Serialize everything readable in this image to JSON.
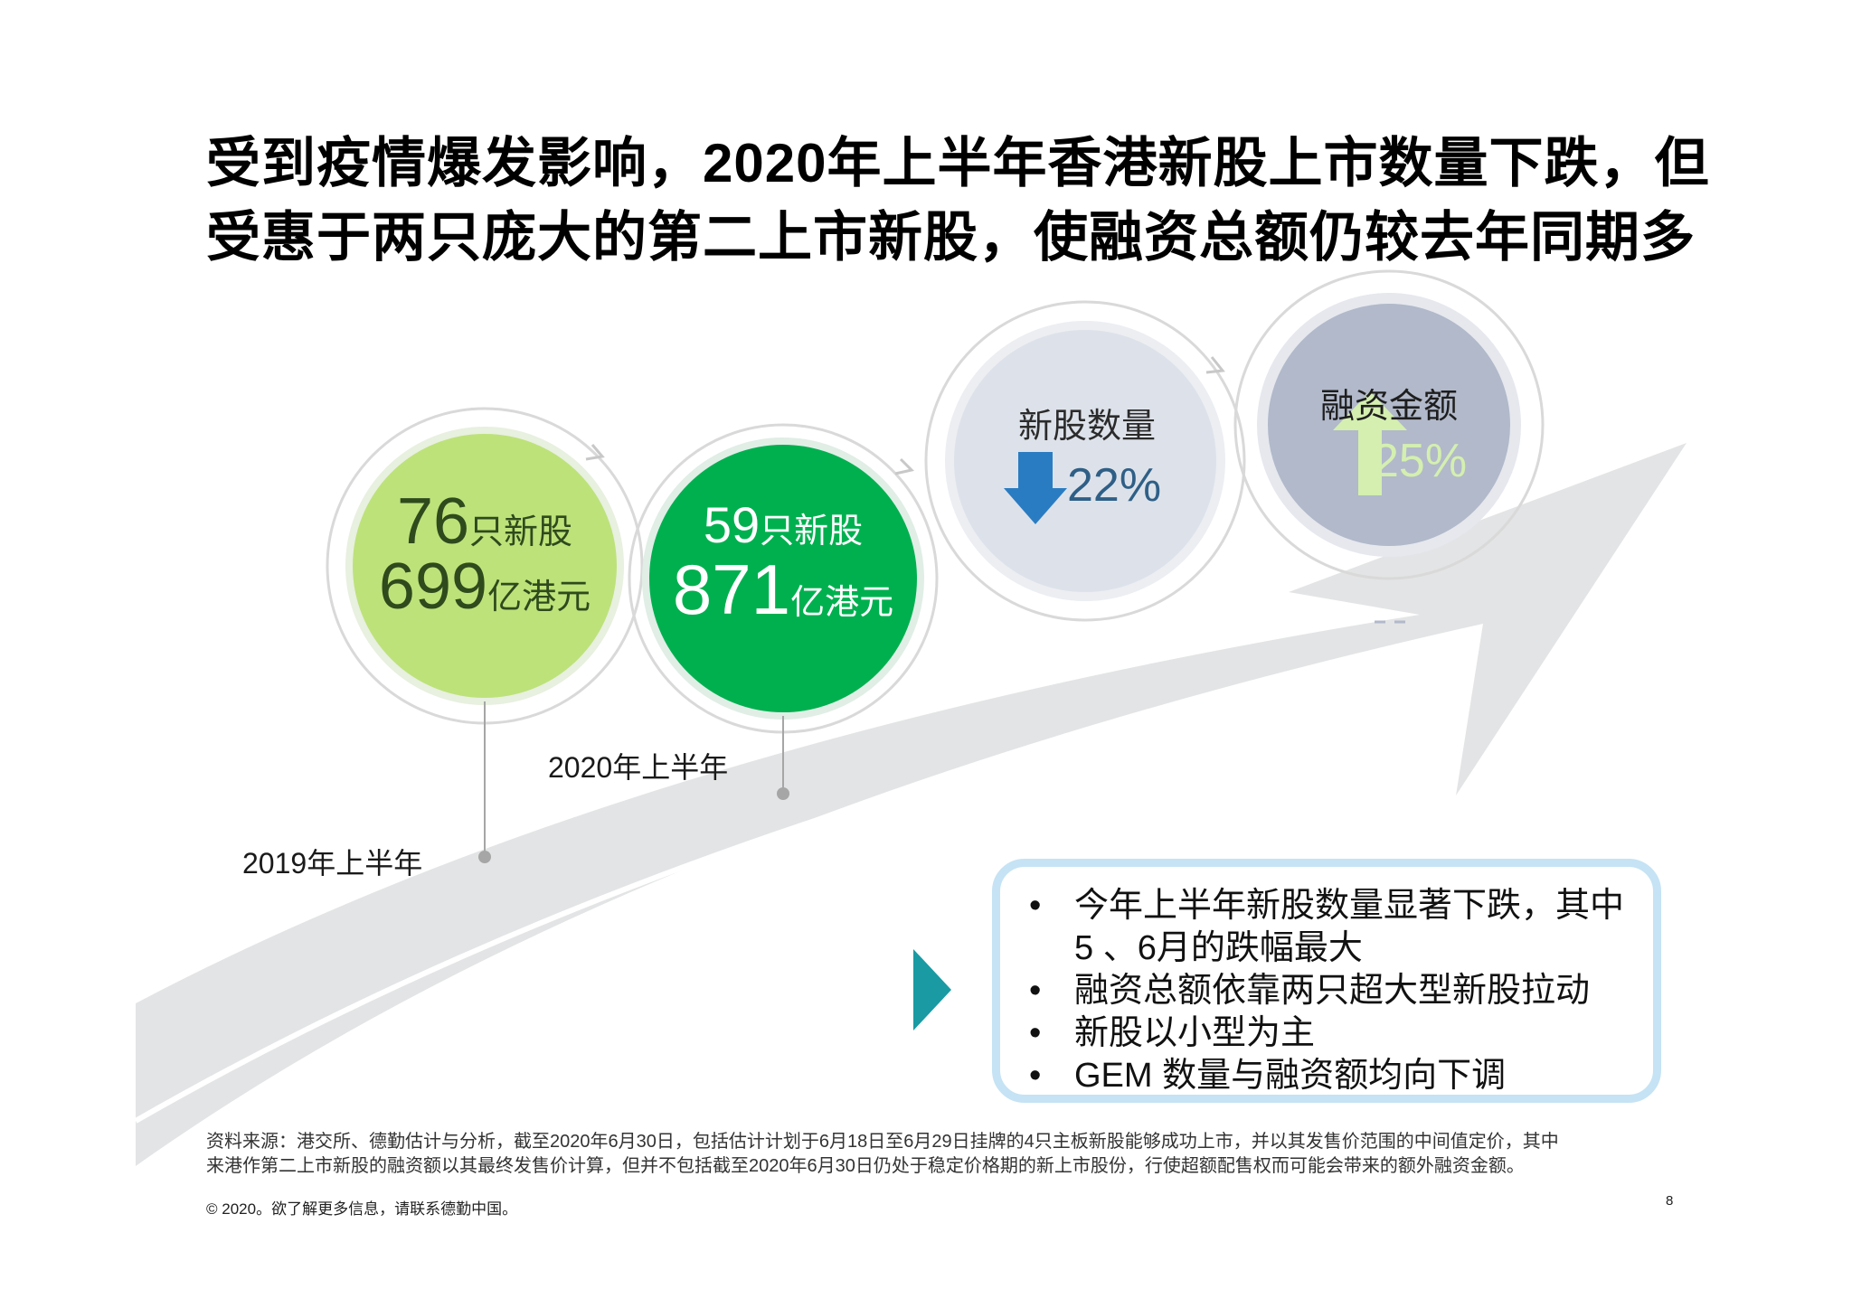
{
  "title": {
    "line1": "受到疫情爆发影响，2020年上半年香港新股上市数量下跌，但",
    "line2": "受惠于两只庞大的第二上市新股，使融资总额仍较去年同期多"
  },
  "circles": {
    "h1_2019": {
      "count": "76",
      "count_unit": "只新股",
      "amount": "699",
      "amount_unit": "亿港元",
      "label": "2019年上半年",
      "color": "#bde27a"
    },
    "h1_2020": {
      "count": "59",
      "count_unit": "只新股",
      "amount": "871",
      "amount_unit": "亿港元",
      "label": "2020年上半年",
      "color": "#00b04f"
    },
    "ipo_count": {
      "label": "新股数量",
      "change": "22%",
      "direction": "down",
      "icon": "down-arrow-icon",
      "color": "#2a7cc2"
    },
    "funds_raised": {
      "label": "融资金额",
      "change": "25%",
      "direction": "up",
      "icon": "up-arrow-icon",
      "color": "#d4efb0"
    }
  },
  "bullets": [
    {
      "line1": "今年上半年新股数量显著下跌，其中",
      "line2": "5 、6月的跌幅最大"
    },
    {
      "line1": "融资总额依靠两只超大型新股拉动"
    },
    {
      "line1": "新股以小型为主"
    },
    {
      "line1": "GEM 数量与融资额均向下调"
    }
  ],
  "bullet_char": "•",
  "source": {
    "line1": "资料来源：港交所、德勤估计与分析，截至2020年6月30日，包括估计计划于6月18日至6月29日挂牌的4只主板新股能够成功上市，并以其发售价范围的中间值定价，其中",
    "line2": "来港作第二上市新股的融资额以其最终发售价计算，但并不包括截至2020年6月30日仍处于稳定价格期的新上市股份，行使超额配售权而可能会带来的额外融资金额。"
  },
  "footer": {
    "copyright": "© 2020。欲了解更多信息，请联系德勤中国。",
    "page": "8"
  },
  "colors": {
    "arrow": "#e3e4e5",
    "teal": "#1a9aa3",
    "box_border": "#c5e3f4",
    "down_blue": "#2a7cc2",
    "up_green": "#d4efb0",
    "text_blue": "#2f5f86"
  }
}
